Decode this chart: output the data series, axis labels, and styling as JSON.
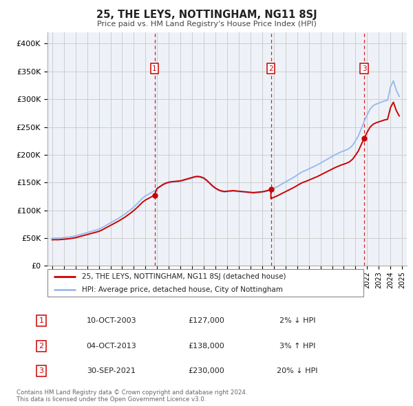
{
  "title": "25, THE LEYS, NOTTINGHAM, NG11 8SJ",
  "subtitle": "Price paid vs. HM Land Registry's House Price Index (HPI)",
  "ylabel_ticks": [
    "£0",
    "£50K",
    "£100K",
    "£150K",
    "£200K",
    "£250K",
    "£300K",
    "£350K",
    "£400K"
  ],
  "ytick_values": [
    0,
    50000,
    100000,
    150000,
    200000,
    250000,
    300000,
    350000,
    400000
  ],
  "ylim": [
    0,
    420000
  ],
  "xlim_start": 1994.6,
  "xlim_end": 2025.4,
  "sale_color": "#cc0000",
  "hpi_color": "#99bbee",
  "dashed_color": "#cc0000",
  "grid_color": "#cccccc",
  "chart_bg": "#eef2f8",
  "background_color": "#ffffff",
  "legend_label_sale": "25, THE LEYS, NOTTINGHAM, NG11 8SJ (detached house)",
  "legend_label_hpi": "HPI: Average price, detached house, City of Nottingham",
  "transactions": [
    {
      "num": 1,
      "date": "10-OCT-2003",
      "price": "£127,000",
      "pct": "2% ↓ HPI"
    },
    {
      "num": 2,
      "date": "04-OCT-2013",
      "price": "£138,000",
      "pct": "3% ↑ HPI"
    },
    {
      "num": 3,
      "date": "30-SEP-2021",
      "price": "£230,000",
      "pct": "20% ↓ HPI"
    }
  ],
  "transaction_years": [
    2003.78,
    2013.75,
    2021.75
  ],
  "transaction_prices": [
    127000,
    138000,
    230000
  ],
  "footer": "Contains HM Land Registry data © Crown copyright and database right 2024.\nThis data is licensed under the Open Government Licence v3.0.",
  "hpi_years": [
    1995.0,
    1995.25,
    1995.5,
    1995.75,
    1996.0,
    1996.25,
    1996.5,
    1996.75,
    1997.0,
    1997.25,
    1997.5,
    1997.75,
    1998.0,
    1998.25,
    1998.5,
    1998.75,
    1999.0,
    1999.25,
    1999.5,
    1999.75,
    2000.0,
    2000.25,
    2000.5,
    2000.75,
    2001.0,
    2001.25,
    2001.5,
    2001.75,
    2002.0,
    2002.25,
    2002.5,
    2002.75,
    2003.0,
    2003.25,
    2003.5,
    2003.75,
    2004.0,
    2004.25,
    2004.5,
    2004.75,
    2005.0,
    2005.25,
    2005.5,
    2005.75,
    2006.0,
    2006.25,
    2006.5,
    2006.75,
    2007.0,
    2007.25,
    2007.5,
    2007.75,
    2008.0,
    2008.25,
    2008.5,
    2008.75,
    2009.0,
    2009.25,
    2009.5,
    2009.75,
    2010.0,
    2010.25,
    2010.5,
    2010.75,
    2011.0,
    2011.25,
    2011.5,
    2011.75,
    2012.0,
    2012.25,
    2012.5,
    2012.75,
    2013.0,
    2013.25,
    2013.5,
    2013.75,
    2014.0,
    2014.25,
    2014.5,
    2014.75,
    2015.0,
    2015.25,
    2015.5,
    2015.75,
    2016.0,
    2016.25,
    2016.5,
    2016.75,
    2017.0,
    2017.25,
    2017.5,
    2017.75,
    2018.0,
    2018.25,
    2018.5,
    2018.75,
    2019.0,
    2019.25,
    2019.5,
    2019.75,
    2020.0,
    2020.25,
    2020.5,
    2020.75,
    2021.0,
    2021.25,
    2021.5,
    2021.75,
    2022.0,
    2022.25,
    2022.5,
    2022.75,
    2023.0,
    2023.25,
    2023.5,
    2023.75,
    2024.0,
    2024.25,
    2024.5,
    2024.75
  ],
  "hpi_values": [
    50000,
    50200,
    50100,
    50500,
    51000,
    51500,
    52200,
    53000,
    54000,
    55500,
    57000,
    58500,
    60000,
    61500,
    63000,
    64500,
    66000,
    68500,
    71500,
    74500,
    77500,
    80500,
    83500,
    86500,
    90000,
    93500,
    97500,
    101500,
    106000,
    111000,
    116500,
    122000,
    126000,
    129000,
    132000,
    135000,
    138500,
    142000,
    145500,
    148000,
    149500,
    150500,
    151000,
    151500,
    152000,
    153500,
    155000,
    156500,
    158000,
    159500,
    160000,
    159000,
    157000,
    153000,
    148000,
    143000,
    139000,
    136000,
    134000,
    133000,
    133500,
    134000,
    134500,
    134000,
    133500,
    133000,
    132500,
    132000,
    131500,
    131000,
    131500,
    132000,
    132500,
    133500,
    135000,
    137000,
    139500,
    142000,
    145000,
    148000,
    151000,
    154000,
    157000,
    160000,
    163500,
    167000,
    170000,
    172000,
    174500,
    177000,
    179500,
    182000,
    185000,
    188000,
    191000,
    194000,
    197000,
    200000,
    202500,
    205000,
    207000,
    209000,
    212000,
    217000,
    225000,
    234000,
    247000,
    260000,
    272000,
    282000,
    288000,
    291000,
    293000,
    295000,
    297000,
    298000,
    322000,
    333000,
    316000,
    305000
  ]
}
